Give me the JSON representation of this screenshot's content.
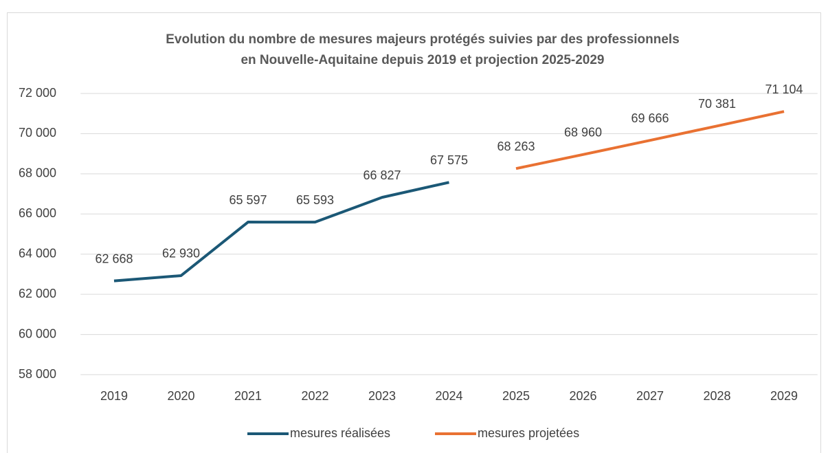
{
  "chart_data": {
    "type": "line",
    "title": [
      "Evolution du nombre de mesures majeurs protégés suivies par des professionnels",
      "en Nouvelle-Aquitaine depuis 2019 et projection 2025-2029"
    ],
    "categories": [
      "2019",
      "2020",
      "2021",
      "2022",
      "2023",
      "2024",
      "2025",
      "2026",
      "2027",
      "2028",
      "2029"
    ],
    "series": [
      {
        "name": "mesures réalisées",
        "color": "#1b5876",
        "values": [
          62668,
          62930,
          65597,
          65593,
          66827,
          67575,
          null,
          null,
          null,
          null,
          null
        ],
        "value_labels": [
          "62 668",
          "62 930",
          "65 597",
          "65 593",
          "66 827",
          "67 575",
          null,
          null,
          null,
          null,
          null
        ]
      },
      {
        "name": "mesures projetées",
        "color": "#e97132",
        "values": [
          null,
          null,
          null,
          null,
          null,
          null,
          68263,
          68960,
          69666,
          70381,
          71104
        ],
        "value_labels": [
          null,
          null,
          null,
          null,
          null,
          null,
          "68 263",
          "68 960",
          "69 666",
          "70 381",
          "71 104"
        ]
      }
    ],
    "ylim": [
      58000,
      72000
    ],
    "yticks": [
      {
        "value": 58000,
        "label": "58 000"
      },
      {
        "value": 60000,
        "label": "60 000"
      },
      {
        "value": 62000,
        "label": "62 000"
      },
      {
        "value": 64000,
        "label": "64 000"
      },
      {
        "value": 66000,
        "label": "66 000"
      },
      {
        "value": 68000,
        "label": "68 000"
      },
      {
        "value": 70000,
        "label": "70 000"
      },
      {
        "value": 72000,
        "label": "72 000"
      }
    ],
    "grid": true,
    "legend": "bottom"
  }
}
